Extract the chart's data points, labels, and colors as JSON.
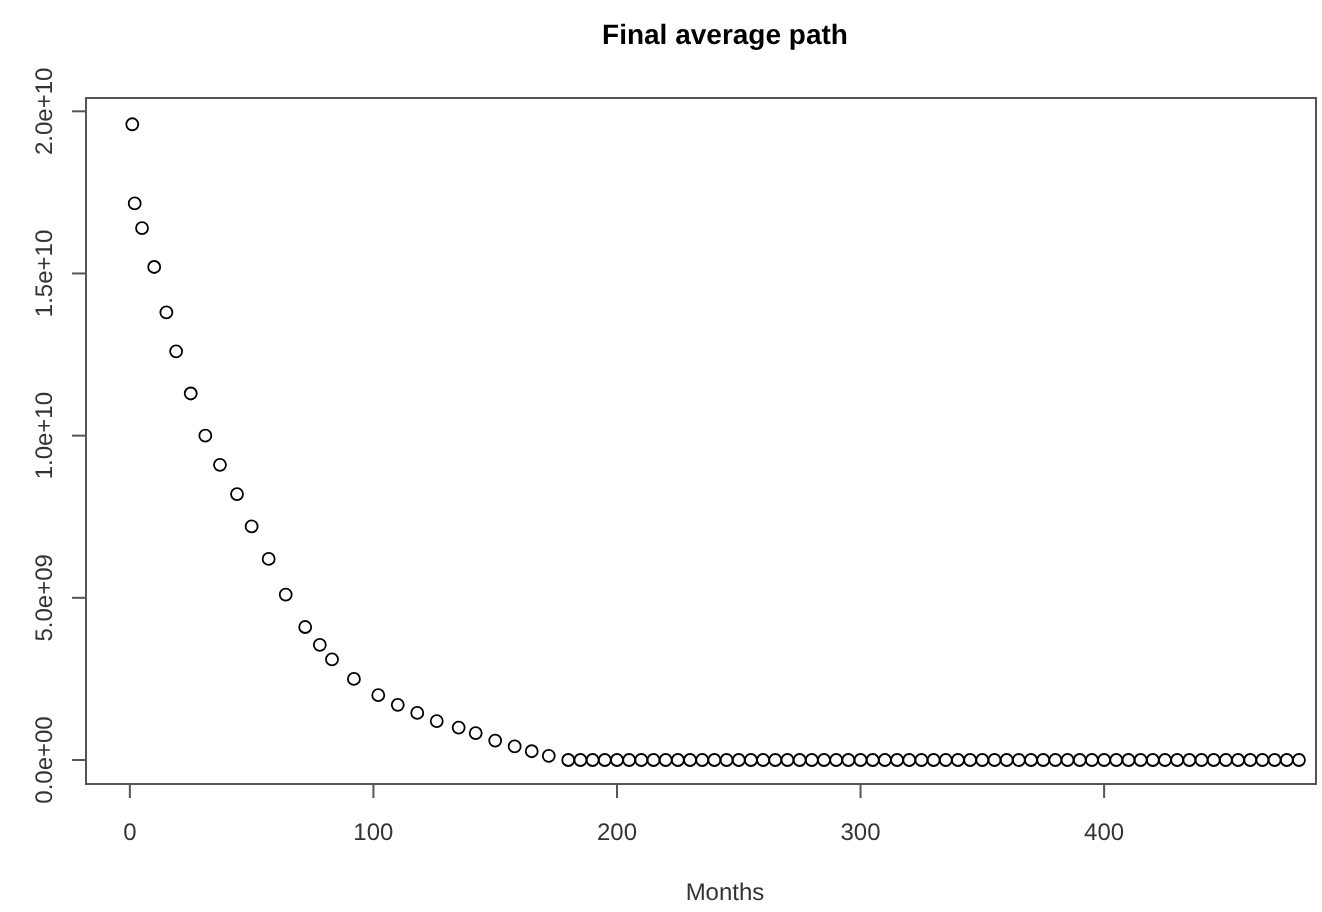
{
  "chart_data": {
    "type": "scatter",
    "title": "Final average path",
    "xlabel": "Months",
    "marker": "circle",
    "grid": false,
    "xlim": [
      -18,
      487
    ],
    "xticks": [
      0,
      100,
      200,
      300,
      400
    ],
    "ylim": [
      -740000000,
      20410000000
    ],
    "yticks": [
      {
        "value": 0,
        "label": "0.0e+00"
      },
      {
        "value": 5000000000,
        "label": "5.0e+09"
      },
      {
        "value": 10000000000,
        "label": "1.0e+10"
      },
      {
        "value": 15000000000,
        "label": "1.5e+10"
      },
      {
        "value": 20000000000,
        "label": "2.0e+10"
      }
    ],
    "series": [
      {
        "color": "#000000",
        "x": [
          1,
          2,
          5,
          10,
          15,
          19,
          25,
          31,
          37,
          44,
          50,
          57,
          64,
          72,
          78,
          83,
          92,
          102,
          110,
          118,
          126,
          135,
          142,
          150,
          158,
          165,
          172,
          180,
          185,
          190,
          195,
          200,
          205,
          210,
          215,
          220,
          225,
          230,
          235,
          240,
          245,
          250,
          255,
          260,
          265,
          270,
          275,
          280,
          285,
          290,
          295,
          300,
          305,
          310,
          315,
          320,
          325,
          330,
          335,
          340,
          345,
          350,
          355,
          360,
          365,
          370,
          375,
          380,
          385,
          390,
          395,
          400,
          405,
          410,
          415,
          420,
          425,
          430,
          435,
          440,
          445,
          450,
          455,
          460,
          465,
          470,
          475,
          480
        ],
        "values": [
          19600000000,
          17160000000,
          16400000000,
          15200000000,
          13800000000,
          12600000000,
          11300000000,
          10000000000,
          9100000000,
          8200000000,
          7200000000,
          6200000000,
          5100000000,
          4100000000,
          3550000000,
          3100000000,
          2500000000,
          2000000000,
          1700000000,
          1450000000,
          1200000000,
          1000000000,
          830000000,
          600000000,
          420000000,
          270000000,
          130000000,
          0,
          0,
          0,
          0,
          0,
          0,
          0,
          0,
          0,
          0,
          0,
          0,
          0,
          0,
          0,
          0,
          0,
          0,
          0,
          0,
          0,
          0,
          0,
          0,
          0,
          0,
          0,
          0,
          0,
          0,
          0,
          0,
          0,
          0,
          0,
          0,
          0,
          0,
          0,
          0,
          0,
          0,
          0,
          0,
          0,
          0,
          0,
          0,
          0,
          0,
          0,
          0,
          0,
          0,
          0,
          0,
          0,
          0,
          0,
          0,
          0
        ]
      }
    ]
  }
}
